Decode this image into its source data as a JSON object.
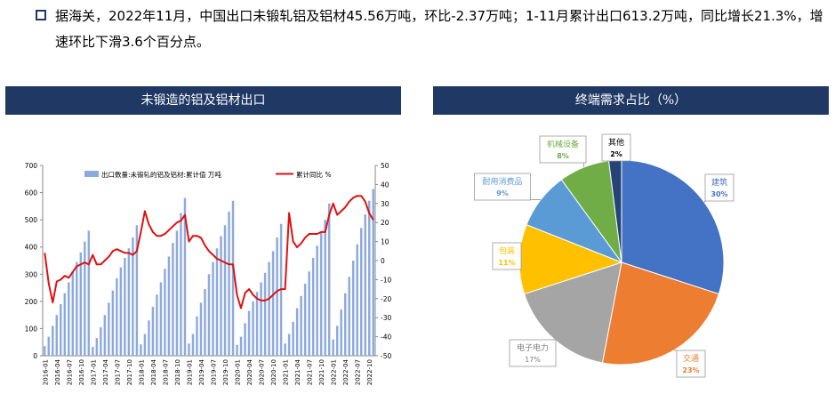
{
  "summary": {
    "text": "据海关，2022年11月，中国出口未锻轧铝及铝材45.56万吨，环比-2.37万吨；1-11月累计出口613.2万吨，同比增长21.3%，增速环比下滑3.6个百分点。"
  },
  "colors": {
    "panel_title_bg": "#1f3864",
    "bar": "#8eaadb",
    "line": "#e01010",
    "pie": [
      "#4472c4",
      "#ed7d31",
      "#a5a5a5",
      "#ffc000",
      "#5b9bd5",
      "#70ad47",
      "#264478"
    ]
  },
  "chart_data": [
    {
      "type": "bar+line",
      "title": "未锻造的铝及铝材出口",
      "x": [
        "2016-01",
        "2016-02",
        "2016-03",
        "2016-04",
        "2016-05",
        "2016-06",
        "2016-07",
        "2016-08",
        "2016-09",
        "2016-10",
        "2016-11",
        "2016-12",
        "2017-01",
        "2017-02",
        "2017-03",
        "2017-04",
        "2017-05",
        "2017-06",
        "2017-07",
        "2017-08",
        "2017-09",
        "2017-10",
        "2017-11",
        "2017-12",
        "2018-01",
        "2018-02",
        "2018-03",
        "2018-04",
        "2018-05",
        "2018-06",
        "2018-07",
        "2018-08",
        "2018-09",
        "2018-10",
        "2018-11",
        "2018-12",
        "2019-01",
        "2019-02",
        "2019-03",
        "2019-04",
        "2019-05",
        "2019-06",
        "2019-07",
        "2019-08",
        "2019-09",
        "2019-10",
        "2019-11",
        "2019-12",
        "2020-01",
        "2020-02",
        "2020-03",
        "2020-04",
        "2020-05",
        "2020-06",
        "2020-07",
        "2020-08",
        "2020-09",
        "2020-10",
        "2020-11",
        "2020-12",
        "2021-01",
        "2021-02",
        "2021-03",
        "2021-04",
        "2021-05",
        "2021-06",
        "2021-07",
        "2021-08",
        "2021-09",
        "2021-10",
        "2021-11",
        "2021-12",
        "2022-01",
        "2022-02",
        "2022-03",
        "2022-04",
        "2022-05",
        "2022-06",
        "2022-07",
        "2022-08",
        "2022-09",
        "2022-10",
        "2022-11"
      ],
      "x_tick_labels": [
        "2016-01",
        "2016-04",
        "2016-07",
        "2016-10",
        "2017-01",
        "2017-04",
        "2017-07",
        "2017-10",
        "2018-01",
        "2018-04",
        "2018-07",
        "2018-10",
        "2019-01",
        "2019-04",
        "2019-07",
        "2019-10",
        "2020-01",
        "2020-04",
        "2020-07",
        "2020-10",
        "2021-01",
        "2021-04",
        "2021-07",
        "2021-10",
        "2022-01",
        "2022-04",
        "2022-07",
        "2022-10"
      ],
      "series": [
        {
          "name": "出口数量:未锻轧的铝及铝材:累计值 万吨",
          "axis": "left",
          "type": "bar",
          "values": [
            35,
            70,
            110,
            150,
            190,
            230,
            270,
            310,
            345,
            380,
            420,
            460,
            33,
            65,
            105,
            150,
            195,
            240,
            285,
            325,
            360,
            395,
            435,
            480,
            42,
            80,
            130,
            180,
            225,
            270,
            320,
            365,
            415,
            460,
            525,
            580,
            45,
            80,
            145,
            195,
            245,
            300,
            345,
            395,
            440,
            480,
            530,
            570,
            40,
            70,
            120,
            165,
            200,
            235,
            270,
            305,
            345,
            385,
            435,
            485,
            45,
            80,
            125,
            175,
            220,
            265,
            310,
            360,
            405,
            455,
            500,
            560,
            60,
            110,
            170,
            230,
            290,
            350,
            410,
            470,
            520,
            570,
            613
          ]
        },
        {
          "name": "累计同比 %",
          "axis": "right",
          "type": "line",
          "values": [
            4,
            -12,
            -22,
            -11,
            -10,
            -8,
            -9,
            -6,
            -3,
            -2,
            -1,
            -2,
            3,
            -2,
            -2,
            0,
            2,
            5,
            6,
            5,
            4,
            4,
            3,
            5,
            15,
            26,
            19,
            15,
            13,
            13,
            14,
            16,
            18,
            20,
            21,
            24,
            10,
            13,
            13,
            12,
            8,
            5,
            3,
            1,
            0,
            -1,
            -2,
            -2,
            -18,
            -25,
            -17,
            -15,
            -18,
            -20,
            -21,
            -21,
            -20,
            -18,
            -16,
            -15,
            -15,
            25,
            10,
            7,
            9,
            12,
            14,
            14,
            14,
            15,
            15,
            24,
            30,
            24,
            26,
            28,
            31,
            33,
            34,
            34,
            31,
            25,
            21.3
          ]
        }
      ],
      "ylim_left": [
        0,
        700
      ],
      "ylim_right": [
        -50,
        50
      ],
      "yticks_left": [
        "0",
        "100",
        "200",
        "300",
        "400",
        "500",
        "600",
        "700"
      ],
      "yticks_right": [
        "-50",
        "-40",
        "-30",
        "-20",
        "-10",
        "0",
        "10",
        "20",
        "30",
        "40",
        "50"
      ],
      "legend_position": "top"
    },
    {
      "type": "pie",
      "title": "终端需求占比（%）",
      "slices": [
        {
          "label": "建筑",
          "value": 30,
          "value_label": "30%"
        },
        {
          "label": "交通",
          "value": 23,
          "value_label": "23%"
        },
        {
          "label": "电子电力",
          "value": 17,
          "value_label": "17%"
        },
        {
          "label": "包装",
          "value": 11,
          "value_label": "11%"
        },
        {
          "label": "耐用消费品",
          "value": 9,
          "value_label": "9%"
        },
        {
          "label": "机械设备",
          "value": 8,
          "value_label": "8%"
        },
        {
          "label": "其他",
          "value": 2,
          "value_label": "2%"
        }
      ]
    }
  ]
}
